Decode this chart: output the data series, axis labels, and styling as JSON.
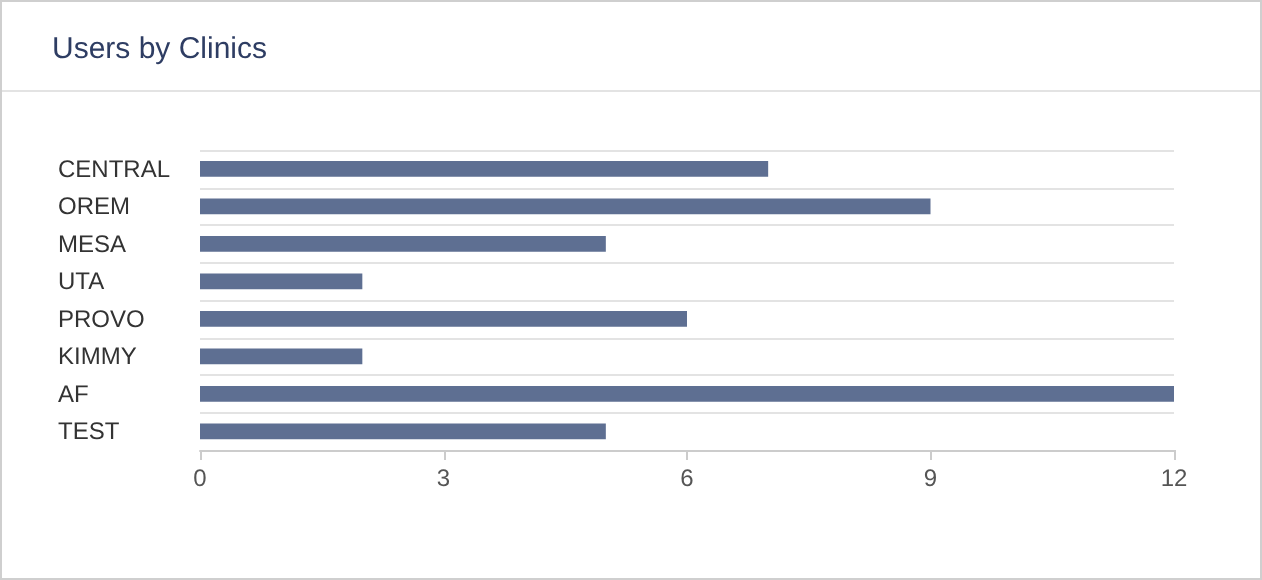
{
  "chart_data": {
    "type": "bar",
    "title": "Users by Clinics",
    "orientation": "horizontal",
    "categories": [
      "CENTRAL",
      "OREM",
      "MESA",
      "UTA",
      "PROVO",
      "KIMMY",
      "AF",
      "TEST"
    ],
    "values": [
      7,
      9,
      5,
      2,
      6,
      2,
      12,
      5
    ],
    "color": "#5e6f92",
    "xlim": [
      0,
      12
    ],
    "xticks": [
      0,
      3,
      6,
      9,
      12
    ],
    "grid": "y"
  }
}
